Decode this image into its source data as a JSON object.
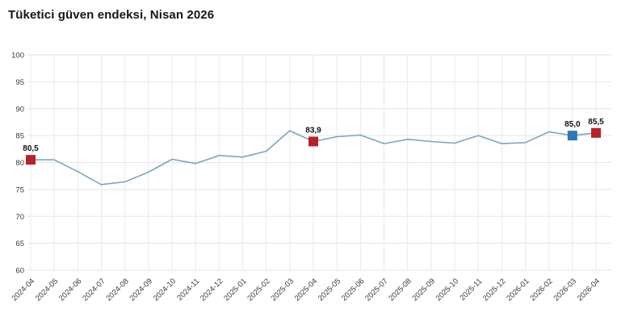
{
  "page": {
    "title": "Tüketici güven endeksi, Nisan 2026"
  },
  "chart_data": {
    "type": "line",
    "title": "Tüketici güven endeksi, Nisan 2026",
    "categories": [
      "2024-04",
      "2024-05",
      "2024-06",
      "2024-07",
      "2024-08",
      "2024-09",
      "2024-10",
      "2024-11",
      "2024-12",
      "2025-01",
      "2025-02",
      "2025-03",
      "2025-04",
      "2025-05",
      "2025-06",
      "2025-07",
      "2025-08",
      "2025-09",
      "2025-10",
      "2025-11",
      "2025-12",
      "2026-01",
      "2026-02",
      "2026-03",
      "2026-04"
    ],
    "values": [
      80.5,
      80.5,
      78.3,
      75.9,
      76.4,
      78.2,
      80.6,
      79.8,
      81.3,
      81.0,
      82.1,
      85.9,
      83.9,
      84.8,
      85.1,
      83.5,
      84.3,
      83.9,
      83.6,
      85.0,
      83.5,
      83.7,
      85.7,
      85.0,
      85.5
    ],
    "ylim": [
      60,
      100
    ],
    "ytick_step": 5,
    "ytick_labels": [
      "60",
      "65",
      "70",
      "75",
      "80",
      "85",
      "90",
      "95",
      "100"
    ],
    "xlabel": "",
    "ylabel": "",
    "grid": true,
    "legend": "none",
    "line_color": "#7aa6bc",
    "grid_color": "#e5e5e5",
    "tick_label_color": "#3a3a3a",
    "marker_label_color": "#111111",
    "marked_points": [
      {
        "category": "2024-04",
        "value": 80.5,
        "label": "80,5",
        "color": "#b2232a",
        "marker": "square"
      },
      {
        "category": "2025-04",
        "value": 83.9,
        "label": "83,9",
        "color": "#b2232a",
        "marker": "square"
      },
      {
        "category": "2026-03",
        "value": 85.0,
        "label": "85,0",
        "color": "#2f77b5",
        "marker": "square"
      },
      {
        "category": "2026-04",
        "value": 85.5,
        "label": "85,5",
        "color": "#b2232a",
        "marker": "square"
      }
    ]
  }
}
